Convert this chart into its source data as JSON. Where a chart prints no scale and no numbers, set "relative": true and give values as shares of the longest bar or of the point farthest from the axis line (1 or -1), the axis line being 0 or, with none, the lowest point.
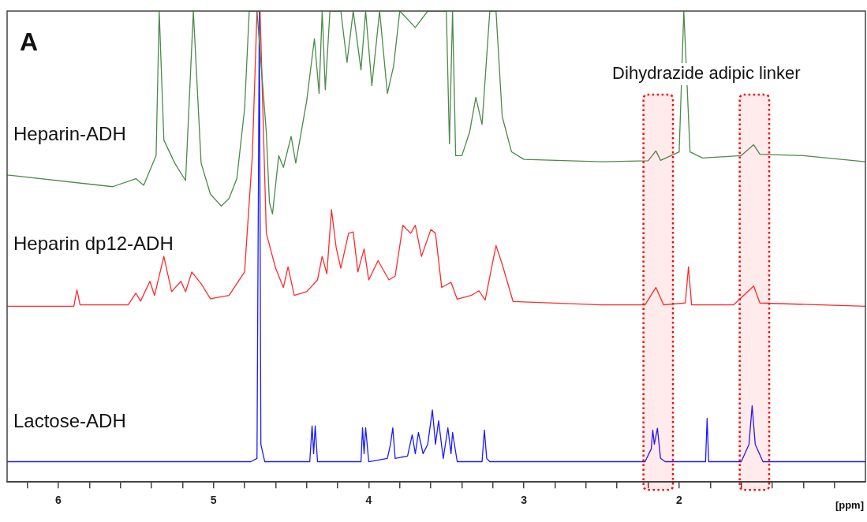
{
  "chart_data": {
    "type": "line",
    "relative": true,
    "xlabel": "[ppm]",
    "legend": false,
    "grid": false,
    "marker": "none",
    "annotations": [
      "A",
      "Dihydrazide adipic linker"
    ],
    "xlim": [
      6.33,
      0.8
    ],
    "xticks": [
      {
        "value": 6.2,
        "label": null
      },
      6,
      {
        "value": 5.8,
        "label": null
      },
      {
        "value": 5.6,
        "label": null
      },
      {
        "value": 5.4,
        "label": null
      },
      {
        "value": 5.2,
        "label": null
      },
      5,
      {
        "value": 4.8,
        "label": null
      },
      {
        "value": 4.6,
        "label": null
      },
      {
        "value": 4.4,
        "label": null
      },
      {
        "value": 4.2,
        "label": null
      },
      4,
      {
        "value": 3.8,
        "label": null
      },
      {
        "value": 3.6,
        "label": null
      },
      {
        "value": 3.4,
        "label": null
      },
      {
        "value": 3.2,
        "label": null
      },
      3,
      {
        "value": 2.8,
        "label": null
      },
      {
        "value": 2.6,
        "label": null
      },
      {
        "value": 2.4,
        "label": null
      },
      {
        "value": 2.2,
        "label": null
      },
      2,
      {
        "value": 1.8,
        "label": null
      },
      {
        "value": 1.6,
        "label": null
      },
      {
        "value": 1.4,
        "label": null
      },
      {
        "value": 1.2,
        "label": null
      },
      {
        "value": 1.0,
        "label": null
      }
    ],
    "bands": [
      {
        "axis": "x",
        "from": 2.23,
        "to": 2.04,
        "color": "#ff0000"
      },
      {
        "axis": "x",
        "from": 1.61,
        "to": 1.42,
        "color": "#ff0000"
      }
    ],
    "series": [
      {
        "name": "Heparin-ADH",
        "color": "#4a8a4a",
        "x": [
          6.33,
          5.65,
          5.5,
          5.45,
          5.37,
          5.35,
          5.32,
          5.25,
          5.18,
          5.13,
          5.08,
          5.02,
          4.95,
          4.9,
          4.85,
          4.8,
          4.77,
          4.72,
          4.66,
          4.64,
          4.62,
          4.58,
          4.55,
          4.5,
          4.47,
          4.4,
          4.35,
          4.32,
          4.3,
          4.28,
          4.25,
          4.18,
          4.14,
          4.1,
          4.05,
          4.02,
          3.98,
          3.93,
          3.88,
          3.84,
          3.8,
          3.7,
          3.62,
          3.55,
          3.5,
          3.48,
          3.46,
          3.44,
          3.4,
          3.35,
          3.31,
          3.27,
          3.22,
          3.18,
          3.14,
          3.08,
          3.0,
          2.5,
          2.2,
          2.15,
          2.12,
          2.0,
          1.97,
          1.93,
          1.85,
          1.6,
          1.52,
          1.48,
          1.2,
          0.8
        ],
        "values": [
          0.652,
          0.627,
          0.644,
          0.63,
          0.693,
          1,
          0.726,
          0.677,
          0.64,
          1,
          0.677,
          0.611,
          0.586,
          0.602,
          0.644,
          0.792,
          1,
          1,
          0.743,
          0.594,
          0.569,
          0.693,
          0.668,
          0.734,
          0.677,
          0.809,
          0.941,
          0.825,
          1,
          0.833,
          1,
          1,
          0.891,
          1,
          0.875,
          1,
          0.842,
          1,
          0.825,
          0.883,
          1,
          0.965,
          1,
          1,
          1,
          0.718,
          1,
          0.693,
          0.693,
          0.743,
          0.817,
          0.759,
          1,
          1,
          0.776,
          0.701,
          0.685,
          0.68,
          0.682,
          0.703,
          0.683,
          0.701,
          1,
          0.701,
          0.688,
          0.693,
          0.716,
          0.696,
          0.693,
          0.68
        ]
      },
      {
        "name": "Heparin dp12-ADH",
        "color": "#ff2a2a",
        "x": [
          6.33,
          5.9,
          5.88,
          5.86,
          5.55,
          5.5,
          5.47,
          5.41,
          5.38,
          5.32,
          5.27,
          5.21,
          5.18,
          5.14,
          5.08,
          5.02,
          4.9,
          4.8,
          4.75,
          4.72,
          4.7,
          4.66,
          4.6,
          4.55,
          4.52,
          4.48,
          4.4,
          4.33,
          4.3,
          4.27,
          4.24,
          4.21,
          4.18,
          4.13,
          4.1,
          4.07,
          4.03,
          4.0,
          3.94,
          3.87,
          3.83,
          3.78,
          3.73,
          3.7,
          3.66,
          3.6,
          3.57,
          3.53,
          3.47,
          3.43,
          3.34,
          3.29,
          3.25,
          3.18,
          3.14,
          3.07,
          2.5,
          2.22,
          2.15,
          2.1,
          1.96,
          1.94,
          1.92,
          1.65,
          1.52,
          1.48,
          0.8
        ],
        "values": [
          0.373,
          0.373,
          0.408,
          0.376,
          0.376,
          0.401,
          0.384,
          0.426,
          0.396,
          0.479,
          0.404,
          0.426,
          0.404,
          0.446,
          0.421,
          0.389,
          0.396,
          0.446,
          0.693,
          1,
          1,
          0.528,
          0.454,
          0.413,
          0.457,
          0.396,
          0.404,
          0.429,
          0.479,
          0.442,
          0.578,
          0.498,
          0.454,
          0.528,
          0.531,
          0.446,
          0.495,
          0.429,
          0.47,
          0.429,
          0.437,
          0.545,
          0.528,
          0.545,
          0.479,
          0.536,
          0.528,
          0.413,
          0.424,
          0.388,
          0.396,
          0.406,
          0.386,
          0.502,
          0.462,
          0.383,
          0.376,
          0.376,
          0.413,
          0.376,
          0.38,
          0.457,
          0.376,
          0.376,
          0.416,
          0.38,
          0.373
        ]
      },
      {
        "name": "Lactose-ADH",
        "color": "#1a1aff",
        "x": [
          6.33,
          4.76,
          4.72,
          4.705,
          4.695,
          4.67,
          4.38,
          4.365,
          4.355,
          4.345,
          4.33,
          4.05,
          4.04,
          4.03,
          4.02,
          4.0,
          3.88,
          3.86,
          3.845,
          3.83,
          3.75,
          3.72,
          3.7,
          3.68,
          3.65,
          3.62,
          3.59,
          3.57,
          3.55,
          3.52,
          3.49,
          3.47,
          3.46,
          3.43,
          3.27,
          3.255,
          3.24,
          3.22,
          2.22,
          2.18,
          2.17,
          2.16,
          2.14,
          2.12,
          2.09,
          1.83,
          1.82,
          1.81,
          1.6,
          1.55,
          1.53,
          1.51,
          1.46,
          0.8
        ],
        "values": [
          0.043,
          0.043,
          0.05,
          1,
          0.08,
          0.043,
          0.043,
          0.119,
          0.06,
          0.119,
          0.043,
          0.043,
          0.115,
          0.06,
          0.115,
          0.043,
          0.05,
          0.08,
          0.115,
          0.05,
          0.055,
          0.1,
          0.06,
          0.105,
          0.06,
          0.08,
          0.153,
          0.08,
          0.13,
          0.05,
          0.115,
          0.06,
          0.105,
          0.043,
          0.043,
          0.11,
          0.05,
          0.043,
          0.043,
          0.07,
          0.11,
          0.08,
          0.114,
          0.05,
          0.043,
          0.043,
          0.135,
          0.043,
          0.043,
          0.08,
          0.162,
          0.08,
          0.043,
          0.043
        ]
      }
    ]
  }
}
